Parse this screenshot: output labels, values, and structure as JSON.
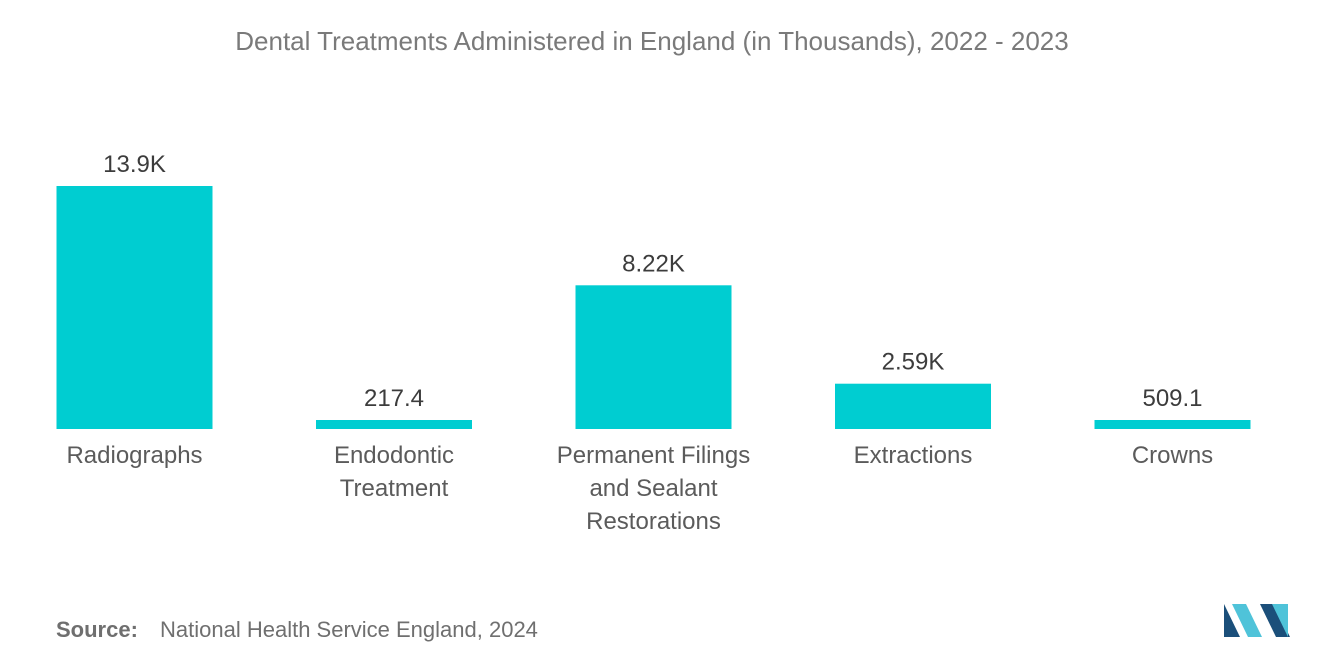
{
  "chart_data": {
    "type": "bar",
    "title": "Dental Treatments Administered in England (in Thousands), 2022 - 2023",
    "categories": [
      [
        "Radiographs"
      ],
      [
        "Endodontic",
        "Treatment"
      ],
      [
        "Permanent Filings",
        "and Sealant",
        "Restorations"
      ],
      [
        "Extractions"
      ],
      [
        "Crowns"
      ]
    ],
    "values": [
      13900,
      217.4,
      8220,
      2590,
      509.1
    ],
    "value_labels": [
      "13.9K",
      "217.4",
      "8.22K",
      "2.59K",
      "509.1"
    ],
    "xlabel": "",
    "ylabel": "",
    "ylim": [
      0,
      13900
    ],
    "grid": false,
    "legend": "none"
  },
  "colors": {
    "bar": "#00cdd1",
    "logo_dark": "#1b4f7a",
    "logo_light": "#4fc3d9"
  },
  "source": {
    "label": "Source:",
    "text": "National Health Service England, 2024"
  },
  "logo": {
    "icon": "mordor-intelligence-logo-icon"
  }
}
